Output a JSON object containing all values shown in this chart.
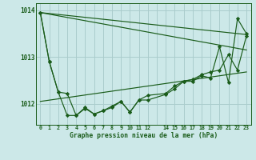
{
  "title": "Graphe pression niveau de la mer (hPa)",
  "bg_color": "#cce8e8",
  "grid_color": "#aacccc",
  "line_color": "#1a5c1a",
  "marker_color": "#1a5c1a",
  "xlim": [
    -0.5,
    23.5
  ],
  "ylim": [
    1011.55,
    1014.15
  ],
  "yticks": [
    1012,
    1013,
    1014
  ],
  "xtick_labels": [
    "0",
    "1",
    "2",
    "3",
    "4",
    "5",
    "6",
    "7",
    "8",
    "9",
    "10",
    "11",
    "12",
    "",
    "14",
    "15",
    "16",
    "17",
    "18",
    "19",
    "20",
    "21",
    "22",
    "23"
  ],
  "series1_x": [
    0,
    1,
    2,
    3,
    4,
    5,
    6,
    7,
    8,
    9,
    10,
    11,
    12,
    14,
    15,
    16,
    17,
    18,
    19,
    20,
    21,
    22,
    23
  ],
  "series1_y": [
    1013.95,
    1012.9,
    1012.25,
    1011.75,
    1011.75,
    1011.9,
    1011.78,
    1011.85,
    1011.95,
    1012.05,
    1011.82,
    1012.08,
    1012.18,
    1012.22,
    1012.38,
    1012.48,
    1012.52,
    1012.62,
    1012.68,
    1012.72,
    1013.05,
    1012.72,
    1013.45
  ],
  "series2_x": [
    0,
    1,
    2,
    3,
    4,
    5,
    6,
    7,
    8,
    9,
    10,
    11,
    12,
    14,
    15,
    16,
    17,
    18,
    19,
    20,
    21,
    22,
    23
  ],
  "series2_y": [
    1013.95,
    1012.9,
    1012.25,
    1012.22,
    1011.75,
    1011.92,
    1011.78,
    1011.85,
    1011.92,
    1012.05,
    1011.82,
    1012.08,
    1012.08,
    1012.2,
    1012.32,
    1012.48,
    1012.48,
    1012.6,
    1012.55,
    1013.22,
    1012.45,
    1013.82,
    1013.5
  ],
  "trendline1_x": [
    0,
    23
  ],
  "trendline1_y": [
    1013.95,
    1013.48
  ],
  "trendline2_x": [
    0,
    23
  ],
  "trendline2_y": [
    1013.95,
    1013.15
  ],
  "trendline3_x": [
    0,
    23
  ],
  "trendline3_y": [
    1012.05,
    1012.68
  ]
}
